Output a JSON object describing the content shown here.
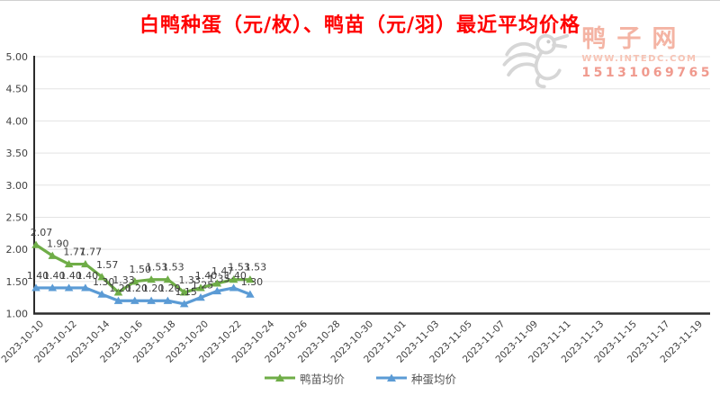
{
  "chart_data": {
    "type": "line",
    "title": "白鸭种蛋（元/枚）、鸭苗（元/羽）最近平均价格",
    "title_color": "#FF0000",
    "x": [
      "2023-10-10",
      "2023-10-11",
      "2023-10-12",
      "2023-10-13",
      "2023-10-14",
      "2023-10-15",
      "2023-10-16",
      "2023-10-17",
      "2023-10-18",
      "2023-10-19",
      "2023-10-20",
      "2023-10-21",
      "2023-10-22",
      "2023-10-23"
    ],
    "series": [
      {
        "name": "鸭苗均价",
        "color": "#6FAD47",
        "marker": "triangle",
        "values": [
          2.07,
          1.9,
          1.77,
          1.77,
          1.57,
          1.33,
          1.5,
          1.53,
          1.53,
          1.33,
          1.4,
          1.47,
          1.53,
          1.53
        ]
      },
      {
        "name": "种蛋均价",
        "color": "#5B9BD5",
        "marker": "triangle",
        "values": [
          1.4,
          1.4,
          1.4,
          1.4,
          1.3,
          1.2,
          1.2,
          1.2,
          1.2,
          1.15,
          1.25,
          1.35,
          1.4,
          1.3
        ]
      }
    ],
    "x_axis_ticks": [
      "2023-10-10",
      "2023-10-12",
      "2023-10-14",
      "2023-10-16",
      "2023-10-18",
      "2023-10-20",
      "2023-10-22",
      "2023-10-24",
      "2023-10-26",
      "2023-10-28",
      "2023-10-30",
      "2023-11-01",
      "2023-11-03",
      "2023-11-05",
      "2023-11-07",
      "2023-11-09",
      "2023-11-11",
      "2023-11-13",
      "2023-11-15",
      "2023-11-17",
      "2023-11-19"
    ],
    "y_ticks": [
      "5.00",
      "4.50",
      "4.00",
      "3.50",
      "3.00",
      "2.50",
      "2.00",
      "1.50",
      "1.00"
    ],
    "ylim": [
      1.0,
      5.0
    ],
    "grid": true,
    "legend_position": "bottom",
    "data_labels": true
  },
  "watermark": {
    "site_name": "鸭子网",
    "url": "WWW.INTEDC.COM",
    "phone": "15131069765"
  }
}
